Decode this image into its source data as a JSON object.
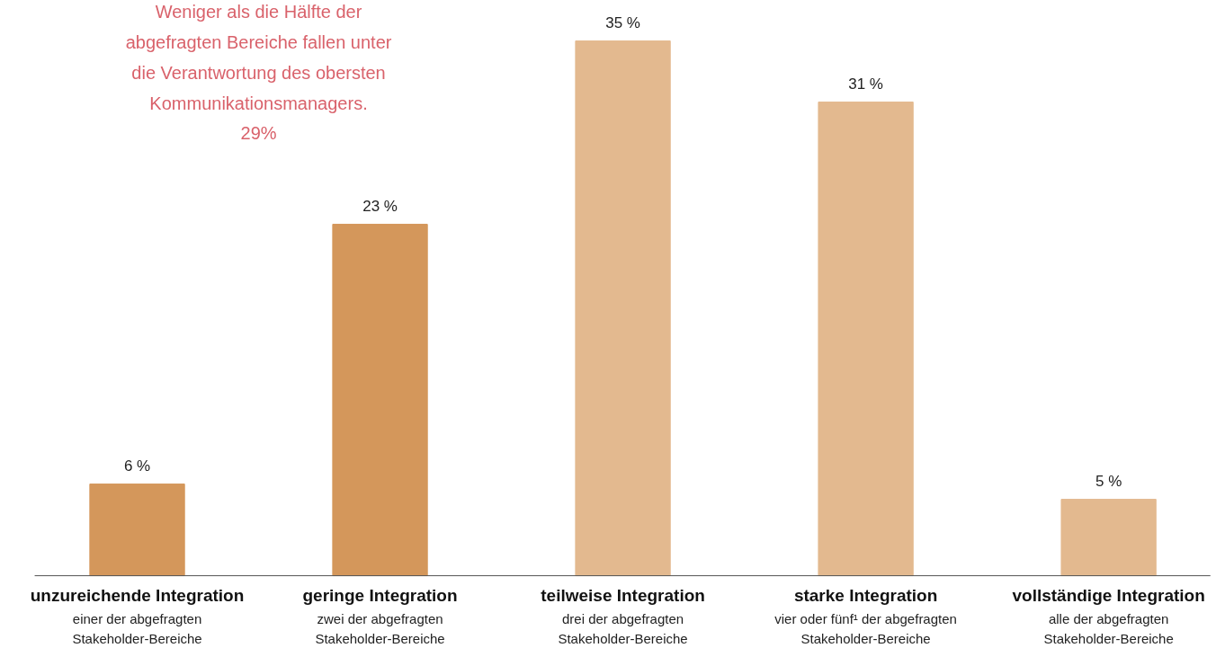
{
  "chart_data": {
    "type": "bar",
    "categories": [
      "unzureichende Integration",
      "geringe Integration",
      "teilweise Integration",
      "starke Integration",
      "vollständige Integration"
    ],
    "values": [
      6,
      23,
      35,
      31,
      5
    ],
    "colors": [
      "#d4975b",
      "#d4975b",
      "#e3b98f",
      "#e3b98f",
      "#e3b98f"
    ],
    "value_labels": [
      "6 %",
      "23 %",
      "35 %",
      "31 %",
      "5 %"
    ],
    "annotations": [
      "Weniger als die Hälfte der\nabgefragten Bereiche fallen unter\ndie Verantwortung des obersten\nKommunikationsmanagers.",
      "29%",
      "einer der abgefragten\nStakeholder-Bereiche",
      "zwei der abgefragten\nStakeholder-Bereiche",
      "drei der abgefragten\nStakeholder-Bereiche",
      "vier oder fünf¹ der abgefragten\nStakeholder-Bereiche",
      "alle der abgefragten\nStakeholder-Bereiche"
    ],
    "grid": false
  }
}
